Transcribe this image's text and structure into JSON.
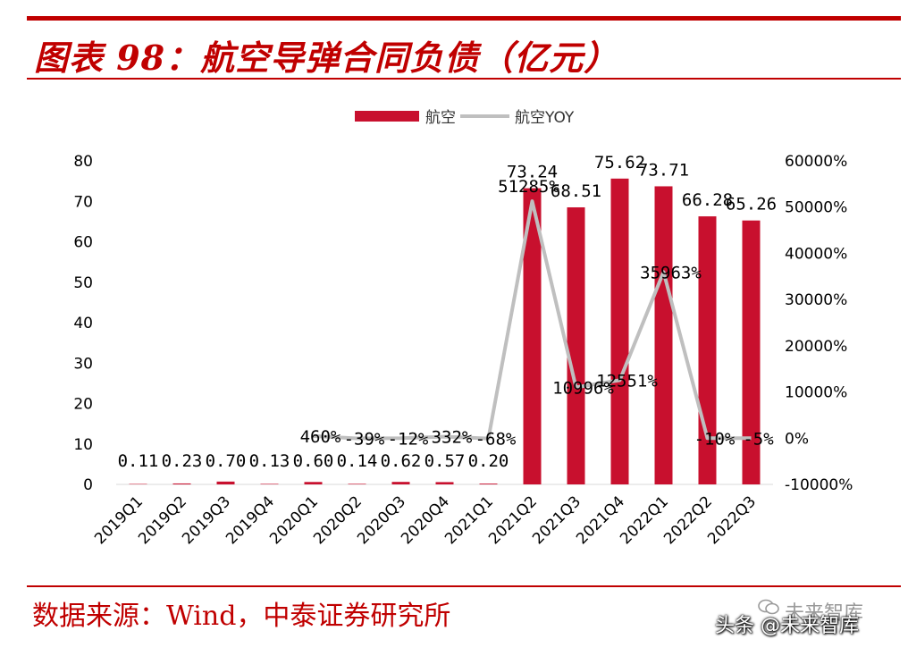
{
  "header": {
    "title": "图表 98：航空导弹合同负债（亿元）"
  },
  "footer": {
    "source": "数据来源：Wind，中泰证券研究所",
    "watermark_main": "头条 @未来智库",
    "watermark_logo": "未来智库"
  },
  "chart_data": {
    "type": "bar",
    "title": "航空导弹合同负债（亿元）",
    "categories": [
      "2019Q1",
      "2019Q2",
      "2019Q3",
      "2019Q4",
      "2020Q1",
      "2020Q2",
      "2020Q3",
      "2020Q4",
      "2021Q1",
      "2021Q2",
      "2021Q3",
      "2021Q4",
      "2022Q1",
      "2022Q2",
      "2022Q3"
    ],
    "series": [
      {
        "name": "航空",
        "kind": "bar",
        "axis": "left",
        "color": "#c8102e",
        "values": [
          0.11,
          0.23,
          0.7,
          0.13,
          0.6,
          0.14,
          0.62,
          0.57,
          0.2,
          73.24,
          68.51,
          75.62,
          73.71,
          66.28,
          65.26
        ],
        "labels": [
          "0.11",
          "0.23",
          "0.70",
          "0.13",
          "0.60",
          "0.14",
          "0.62",
          "0.57",
          "0.20",
          "73.24",
          "68.51",
          "75.62",
          "73.71",
          "66.28",
          "65.26"
        ]
      },
      {
        "name": "航空YOY",
        "kind": "line",
        "axis": "right",
        "color": "#bfbfbf",
        "values": [
          null,
          null,
          null,
          null,
          460,
          -39,
          -12,
          332,
          -68,
          51285,
          10996,
          12551,
          35963,
          -10,
          -5
        ],
        "labels": [
          "",
          "",
          "",
          "",
          "460%",
          "-39%",
          "-12%",
          "332%",
          "-68%",
          "51285%",
          "10996%",
          "12551%",
          "35963%",
          "-10%",
          "-5%"
        ]
      }
    ],
    "y_left": {
      "min": 0,
      "max": 80,
      "ticks": [
        "0",
        "10",
        "20",
        "30",
        "40",
        "50",
        "60",
        "70",
        "80"
      ]
    },
    "y_right": {
      "min": -10000,
      "max": 60000,
      "ticks": [
        "-10000%",
        "0%",
        "10000%",
        "20000%",
        "30000%",
        "40000%",
        "50000%",
        "60000%"
      ]
    },
    "legend": {
      "position": "top-center",
      "entries": [
        "航空",
        "航空YOY"
      ]
    }
  }
}
